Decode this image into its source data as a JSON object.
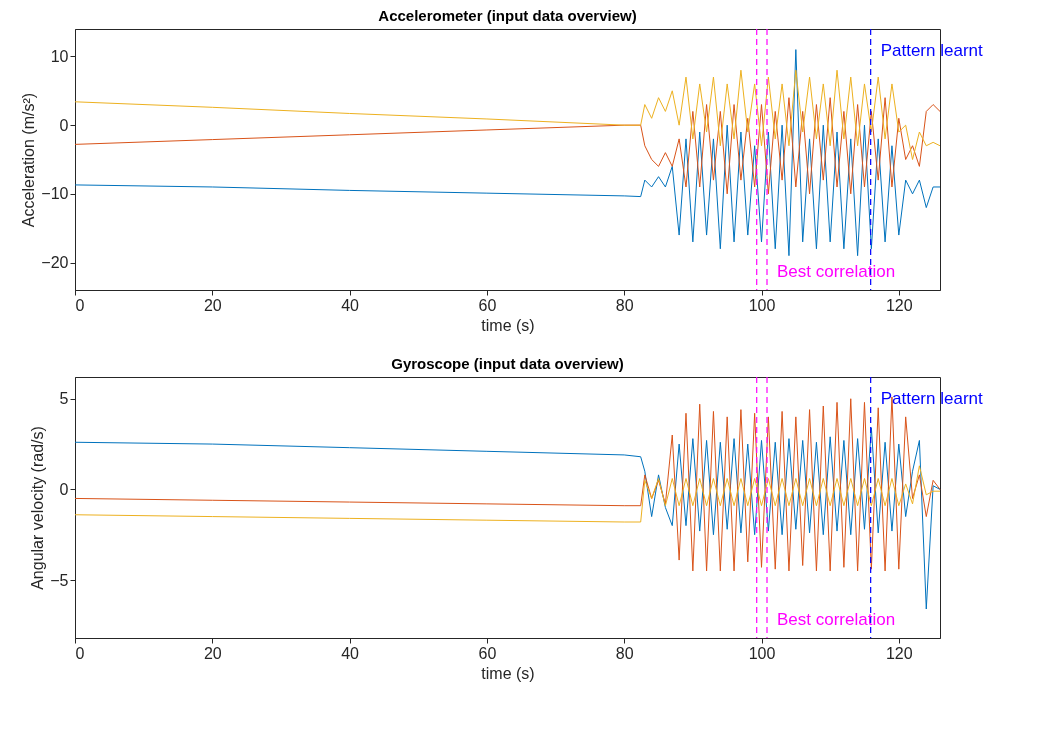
{
  "chart_data": [
    {
      "type": "line",
      "title": "Accelerometer (input data overview)",
      "xlabel": "time (s)",
      "ylabel": "Acceleration (m/s²)",
      "x": [
        0,
        20,
        40,
        60,
        80,
        82.4,
        83,
        84,
        85,
        86,
        87,
        88,
        89,
        90,
        91,
        92,
        93,
        94,
        95,
        96,
        97,
        98,
        99,
        100,
        101,
        102,
        103,
        104,
        105,
        106,
        107,
        108,
        109,
        110,
        111,
        112,
        113,
        114,
        115,
        116,
        117,
        118,
        119,
        120,
        121,
        122,
        123,
        124,
        125,
        126
      ],
      "series": [
        {
          "color": "#0072bd",
          "values": [
            -8.7,
            -9.0,
            -9.5,
            -9.9,
            -10.3,
            -10.4,
            -8,
            -9,
            -7.5,
            -9,
            -6,
            -16,
            -2,
            -17,
            -1,
            -16,
            -2,
            -18,
            0,
            -17,
            -1,
            -16,
            -3,
            -17,
            -1,
            -18,
            0,
            -19,
            11,
            -17,
            -2,
            -18,
            0,
            -17,
            -1,
            -18,
            -2,
            -19,
            0,
            -18,
            -2,
            -17,
            -3,
            -16,
            -8,
            -10,
            -8,
            -12,
            -9,
            -9
          ]
        },
        {
          "color": "#d95319",
          "values": [
            -2.8,
            -2.1,
            -1.4,
            -0.7,
            0,
            0,
            -3,
            -5,
            -6,
            -4,
            -6,
            -2,
            -9,
            2,
            -9,
            3,
            -8,
            2,
            -10,
            3,
            -8,
            1,
            -9,
            3,
            -10,
            2,
            -8,
            4,
            -9,
            2,
            -10,
            3,
            -8,
            4,
            -9,
            2,
            -10,
            3,
            -9,
            2,
            -8,
            4,
            -9,
            1,
            -5,
            -3,
            -6,
            2,
            3,
            2
          ]
        },
        {
          "color": "#edb120",
          "values": [
            3.4,
            2.6,
            1.7,
            0.9,
            0,
            0,
            3,
            1,
            4,
            2,
            5,
            0,
            7,
            -2,
            6,
            -1,
            7,
            -3,
            6,
            -2,
            8,
            -1,
            6,
            -3,
            7,
            -2,
            6,
            -3,
            8,
            -1,
            7,
            -2,
            6,
            -3,
            8,
            -2,
            7,
            -3,
            6,
            -1,
            7,
            -2,
            6,
            -1,
            0,
            -5,
            -1,
            -3,
            -2.5,
            -3
          ]
        }
      ],
      "xlim": [
        0,
        126
      ],
      "xticks": [
        0,
        20,
        40,
        60,
        80,
        100,
        120
      ],
      "ylim": [
        -24,
        14
      ],
      "yticks": [
        -20,
        -10,
        0,
        10
      ],
      "grid": false,
      "line_style": "solid",
      "ref_lines": [
        {
          "axis": "x",
          "value": 99.3,
          "label": null,
          "color": "#ff00ff",
          "line_style": "dashed"
        },
        {
          "axis": "x",
          "value": 100.8,
          "label": "Best correlation",
          "color": "#ff00ff",
          "line_style": "dashed"
        },
        {
          "axis": "x",
          "value": 115.9,
          "label": "Pattern learnt",
          "color": "#0000ff",
          "line_style": "dashed"
        }
      ]
    },
    {
      "type": "line",
      "title": "Gyroscope (input data overview)",
      "xlabel": "time (s)",
      "ylabel": "Angular velocity (rad/s)",
      "x": [
        0,
        20,
        40,
        60,
        80,
        82.4,
        83,
        84,
        85,
        86,
        87,
        88,
        89,
        90,
        91,
        92,
        93,
        94,
        95,
        96,
        97,
        98,
        99,
        100,
        101,
        102,
        103,
        104,
        105,
        106,
        107,
        108,
        109,
        110,
        111,
        112,
        113,
        114,
        115,
        116,
        117,
        118,
        119,
        120,
        121,
        122,
        123,
        124,
        125,
        126
      ],
      "series": [
        {
          "color": "#0072bd",
          "values": [
            2.6,
            2.5,
            2.3,
            2.1,
            1.9,
            1.8,
            1.0,
            -1.5,
            0.8,
            -1.0,
            -2.0,
            2.5,
            -2.0,
            2.8,
            -2.3,
            2.7,
            -2.5,
            2.6,
            -2.2,
            2.8,
            -2.4,
            2.5,
            -2.5,
            2.7,
            -2.3,
            2.6,
            -2.5,
            2.8,
            -2.2,
            2.7,
            -2.4,
            2.6,
            -2.5,
            2.9,
            -2.3,
            2.7,
            -2.5,
            2.8,
            -2.2,
            3.4,
            -2.4,
            2.6,
            -2.3,
            2.5,
            -1.5,
            1.0,
            2.7,
            -6.6,
            0.2,
            0.0
          ]
        },
        {
          "color": "#d95319",
          "values": [
            -0.5,
            -0.6,
            -0.7,
            -0.8,
            -0.9,
            -0.9,
            0.8,
            -0.5,
            0.5,
            -0.8,
            3.0,
            -3.9,
            4.2,
            -4.5,
            4.7,
            -4.5,
            4.3,
            -4.5,
            4.0,
            -4.5,
            4.4,
            -4.0,
            4.2,
            -4.3,
            4.0,
            -4.4,
            4.3,
            -4.5,
            4.0,
            -4.2,
            4.4,
            -4.5,
            4.6,
            -4.5,
            4.8,
            -4.3,
            5.0,
            -4.5,
            4.8,
            -4.4,
            4.5,
            -4.5,
            5.1,
            -4.4,
            4.0,
            -0.5,
            0.8,
            -1.5,
            0.5,
            0.0
          ]
        },
        {
          "color": "#edb120",
          "values": [
            -1.4,
            -1.5,
            -1.6,
            -1.7,
            -1.8,
            -1.8,
            0.5,
            -0.5,
            0.6,
            -0.9,
            0.6,
            -0.9,
            0.6,
            -0.9,
            0.6,
            -0.9,
            0.6,
            -0.9,
            0.6,
            -0.9,
            0.6,
            -0.9,
            0.6,
            -0.9,
            0.6,
            -0.9,
            0.6,
            -0.9,
            0.6,
            -0.9,
            0.6,
            -0.9,
            0.6,
            -0.9,
            0.6,
            -0.9,
            0.6,
            -0.9,
            0.6,
            -0.9,
            0.6,
            -0.9,
            0.6,
            -0.9,
            0.3,
            -0.8,
            1.3,
            -0.3,
            -0.1,
            -0.1
          ]
        }
      ],
      "xlim": [
        0,
        126
      ],
      "xticks": [
        0,
        20,
        40,
        60,
        80,
        100,
        120
      ],
      "ylim": [
        -8.2,
        6.2
      ],
      "yticks": [
        -5,
        0,
        5
      ],
      "grid": false,
      "line_style": "solid",
      "ref_lines": [
        {
          "axis": "x",
          "value": 99.3,
          "label": null,
          "color": "#ff00ff",
          "line_style": "dashed"
        },
        {
          "axis": "x",
          "value": 100.8,
          "label": "Best correlation",
          "color": "#ff00ff",
          "line_style": "dashed"
        },
        {
          "axis": "x",
          "value": 115.9,
          "label": "Pattern learnt",
          "color": "#0000ff",
          "line_style": "dashed"
        }
      ]
    }
  ]
}
